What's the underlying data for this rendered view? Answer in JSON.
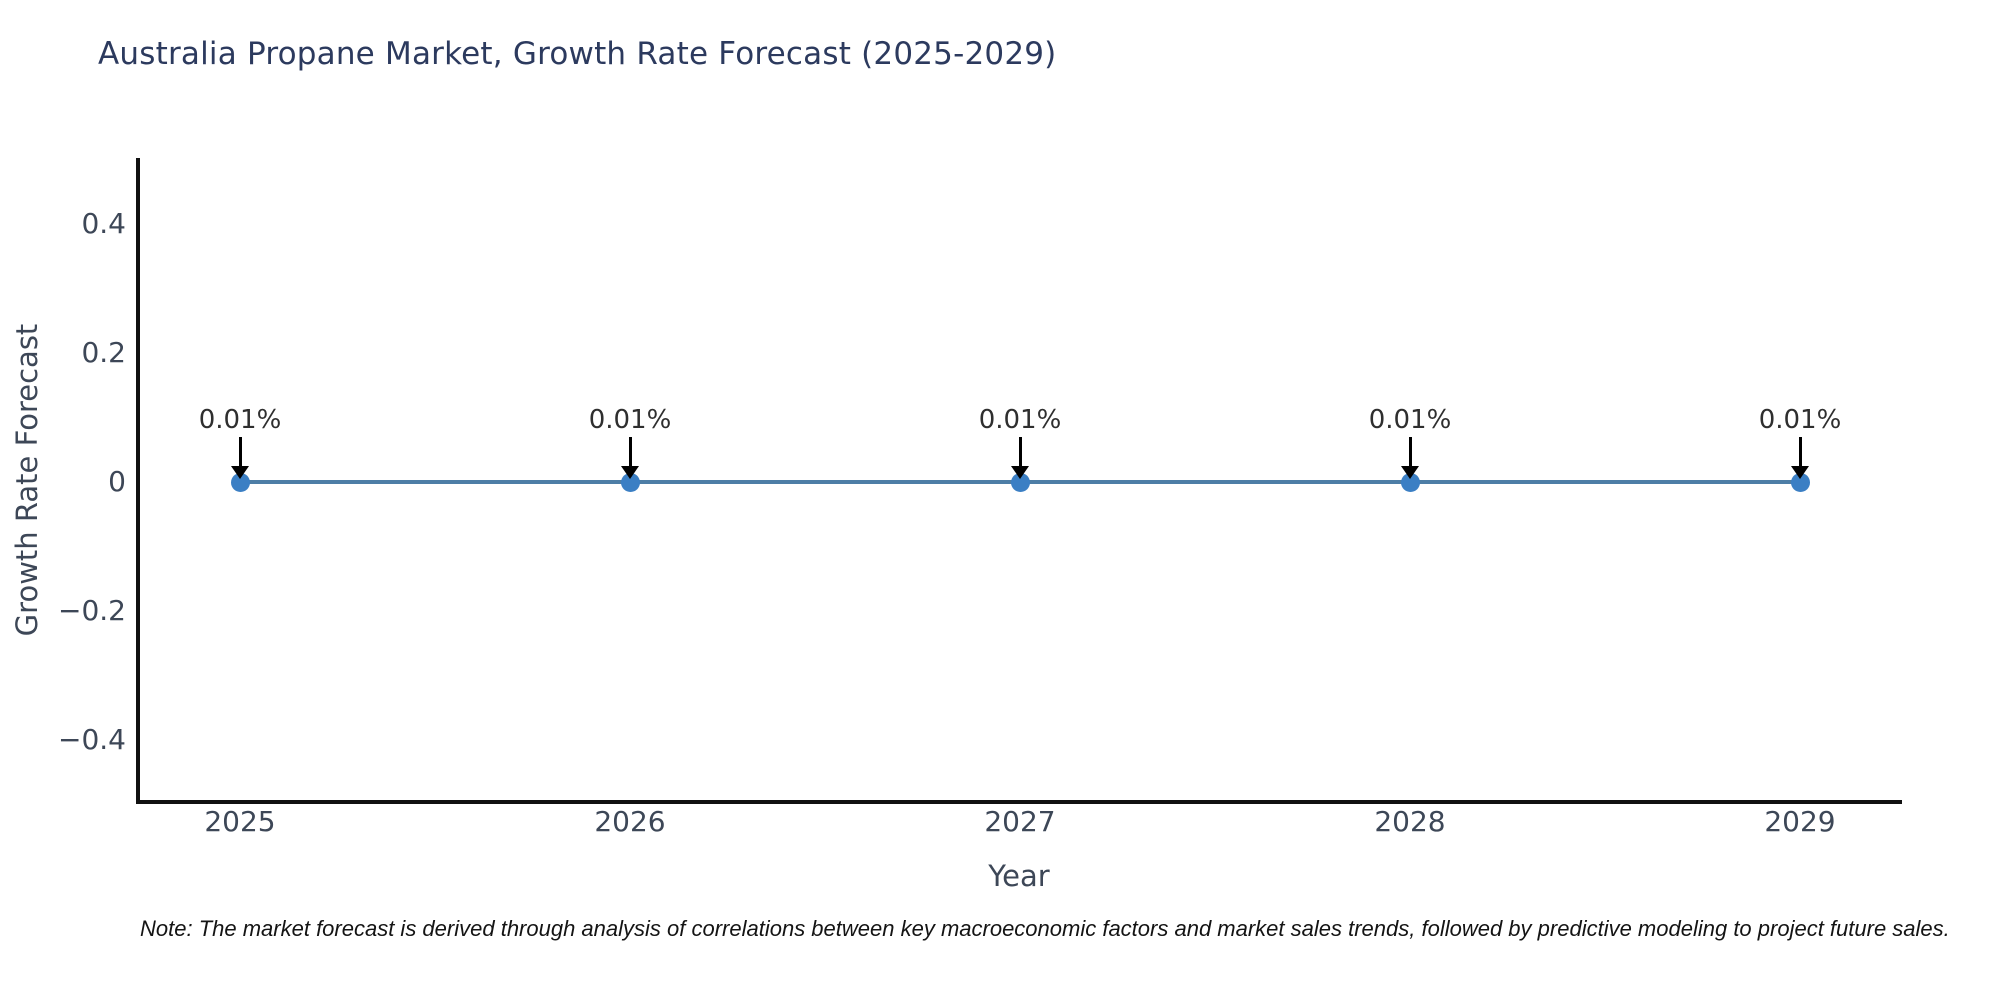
{
  "chart_data": {
    "type": "line",
    "title": "Australia Propane Market, Growth Rate Forecast (2025-2029)",
    "x": [
      2025,
      2026,
      2027,
      2028,
      2029
    ],
    "series": [
      {
        "name": "Growth Rate Forecast",
        "values": [
          0.01,
          0.01,
          0.01,
          0.01,
          0.01
        ]
      }
    ],
    "point_labels": [
      "0.01%",
      "0.01%",
      "0.01%",
      "0.01%",
      "0.01%"
    ],
    "xlabel": "Year",
    "ylabel": "Growth Rate Forecast",
    "xtick_labels": [
      "2025",
      "2026",
      "2027",
      "2028",
      "2029"
    ],
    "ytick_values": [
      0.4,
      0.2,
      0,
      -0.2,
      -0.4
    ],
    "ytick_labels": [
      "0.4",
      "0.2",
      "0",
      "−0.2",
      "−0.4"
    ],
    "xlim": [
      2024.7,
      2029.3
    ],
    "ylim": [
      -0.5,
      0.5
    ],
    "grid": false,
    "legend": "none",
    "colors": {
      "line": "#4d7ea6",
      "marker": "#3b7fc4",
      "arrow": "#000000",
      "spine": "#111111",
      "title_text": "#2c3a5e",
      "tick_text": "#3d4757",
      "annotation_text": "#2f2f2f"
    }
  },
  "note": "Note: The market forecast is derived through analysis of correlations between key macroeconomic factors and market sales trends, followed by predictive modeling to project future sales."
}
